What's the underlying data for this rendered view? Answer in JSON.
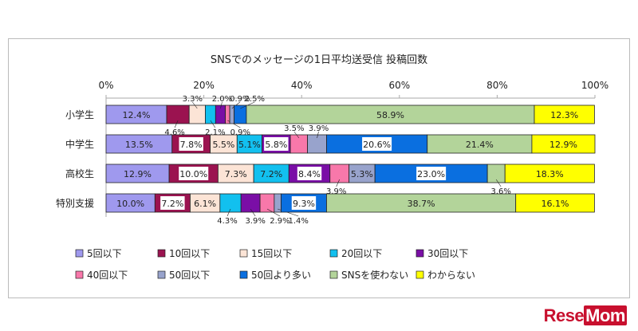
{
  "chart_data": {
    "type": "bar",
    "orientation": "horizontal",
    "stacked": true,
    "title": "SNSでのメッセージの1日平均送受信 投稿回数",
    "categories": [
      "小学生",
      "中学生",
      "高校生",
      "特別支援"
    ],
    "xlim": [
      0,
      100
    ],
    "x_ticks": [
      "0%",
      "20%",
      "40%",
      "60%",
      "80%",
      "100%"
    ],
    "legend_position": "bottom",
    "series": [
      {
        "name": "5回以下",
        "color": "#9f99ee",
        "values": [
          12.4,
          13.5,
          12.9,
          10.0
        ]
      },
      {
        "name": "10回以下",
        "color": "#9b1350",
        "values": [
          4.6,
          7.8,
          10.0,
          7.2
        ]
      },
      {
        "name": "15回以下",
        "color": "#fce4d6",
        "values": [
          3.3,
          5.5,
          7.3,
          6.1
        ]
      },
      {
        "name": "20回以下",
        "color": "#12c0ef",
        "values": [
          2.1,
          5.1,
          7.2,
          4.3
        ]
      },
      {
        "name": "30回以下",
        "color": "#7a0ea6",
        "values": [
          2.0,
          5.8,
          8.4,
          3.9
        ]
      },
      {
        "name": "40回以下",
        "color": "#f878aa",
        "values": [
          0.9,
          3.5,
          3.9,
          2.9
        ]
      },
      {
        "name": "50回以下",
        "color": "#98a3cc",
        "values": [
          0.9,
          3.9,
          5.3,
          1.4
        ]
      },
      {
        "name": "50回より多い",
        "color": "#0a6fe0",
        "values": [
          2.5,
          20.6,
          23.0,
          9.3
        ]
      },
      {
        "name": "SNSを使わない",
        "color": "#b3d49a",
        "values": [
          58.9,
          21.4,
          3.6,
          38.7
        ]
      },
      {
        "name": "わからない",
        "color": "#ffff00",
        "values": [
          12.3,
          12.9,
          18.3,
          16.1
        ]
      }
    ]
  },
  "logo": "ReseMom"
}
